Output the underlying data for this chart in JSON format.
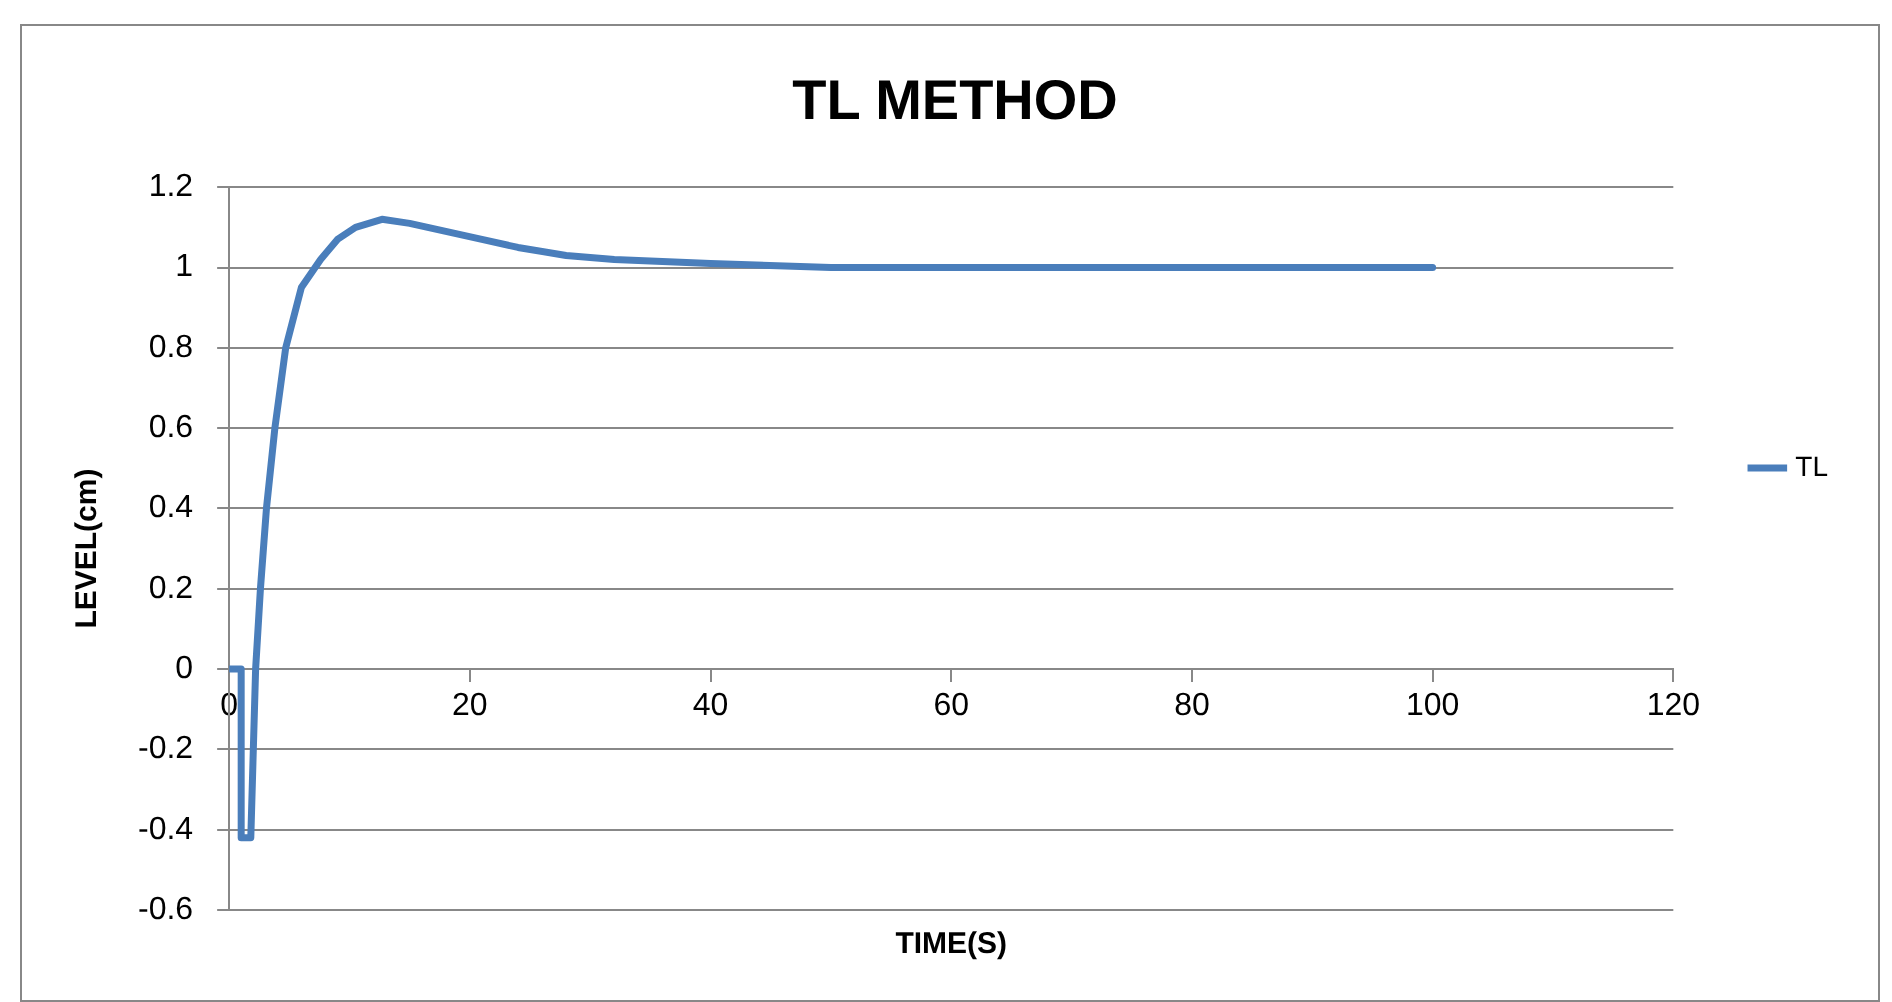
{
  "chart_data": {
    "type": "line",
    "title": "TL METHOD",
    "xlabel": "TIME(S)",
    "ylabel": "LEVEL(cm)",
    "x": [
      0,
      1,
      1,
      1.8,
      2.2,
      2.6,
      3.1,
      3.8,
      4.7,
      6,
      7.6,
      9,
      10.5,
      12.7,
      15,
      18,
      21,
      24,
      28,
      32,
      40,
      50,
      60,
      100
    ],
    "series": [
      {
        "name": "TL",
        "color": "#4a7ebb",
        "values": [
          0,
          0,
          -0.42,
          -0.42,
          0,
          0.2,
          0.4,
          0.6,
          0.8,
          0.95,
          1.02,
          1.07,
          1.1,
          1.12,
          1.11,
          1.09,
          1.07,
          1.05,
          1.03,
          1.02,
          1.01,
          1.0,
          1.0,
          1.0
        ]
      }
    ],
    "xlim": [
      0,
      120
    ],
    "xticks": [
      0,
      20,
      40,
      60,
      80,
      100,
      120
    ],
    "ylim": [
      -0.6,
      1.2
    ],
    "yticks": [
      -0.6,
      -0.4,
      -0.2,
      0,
      0.2,
      0.4,
      0.6,
      0.8,
      1,
      1.2
    ],
    "grid": "y",
    "legend": "right",
    "marker": "none",
    "line_style": "solid"
  }
}
